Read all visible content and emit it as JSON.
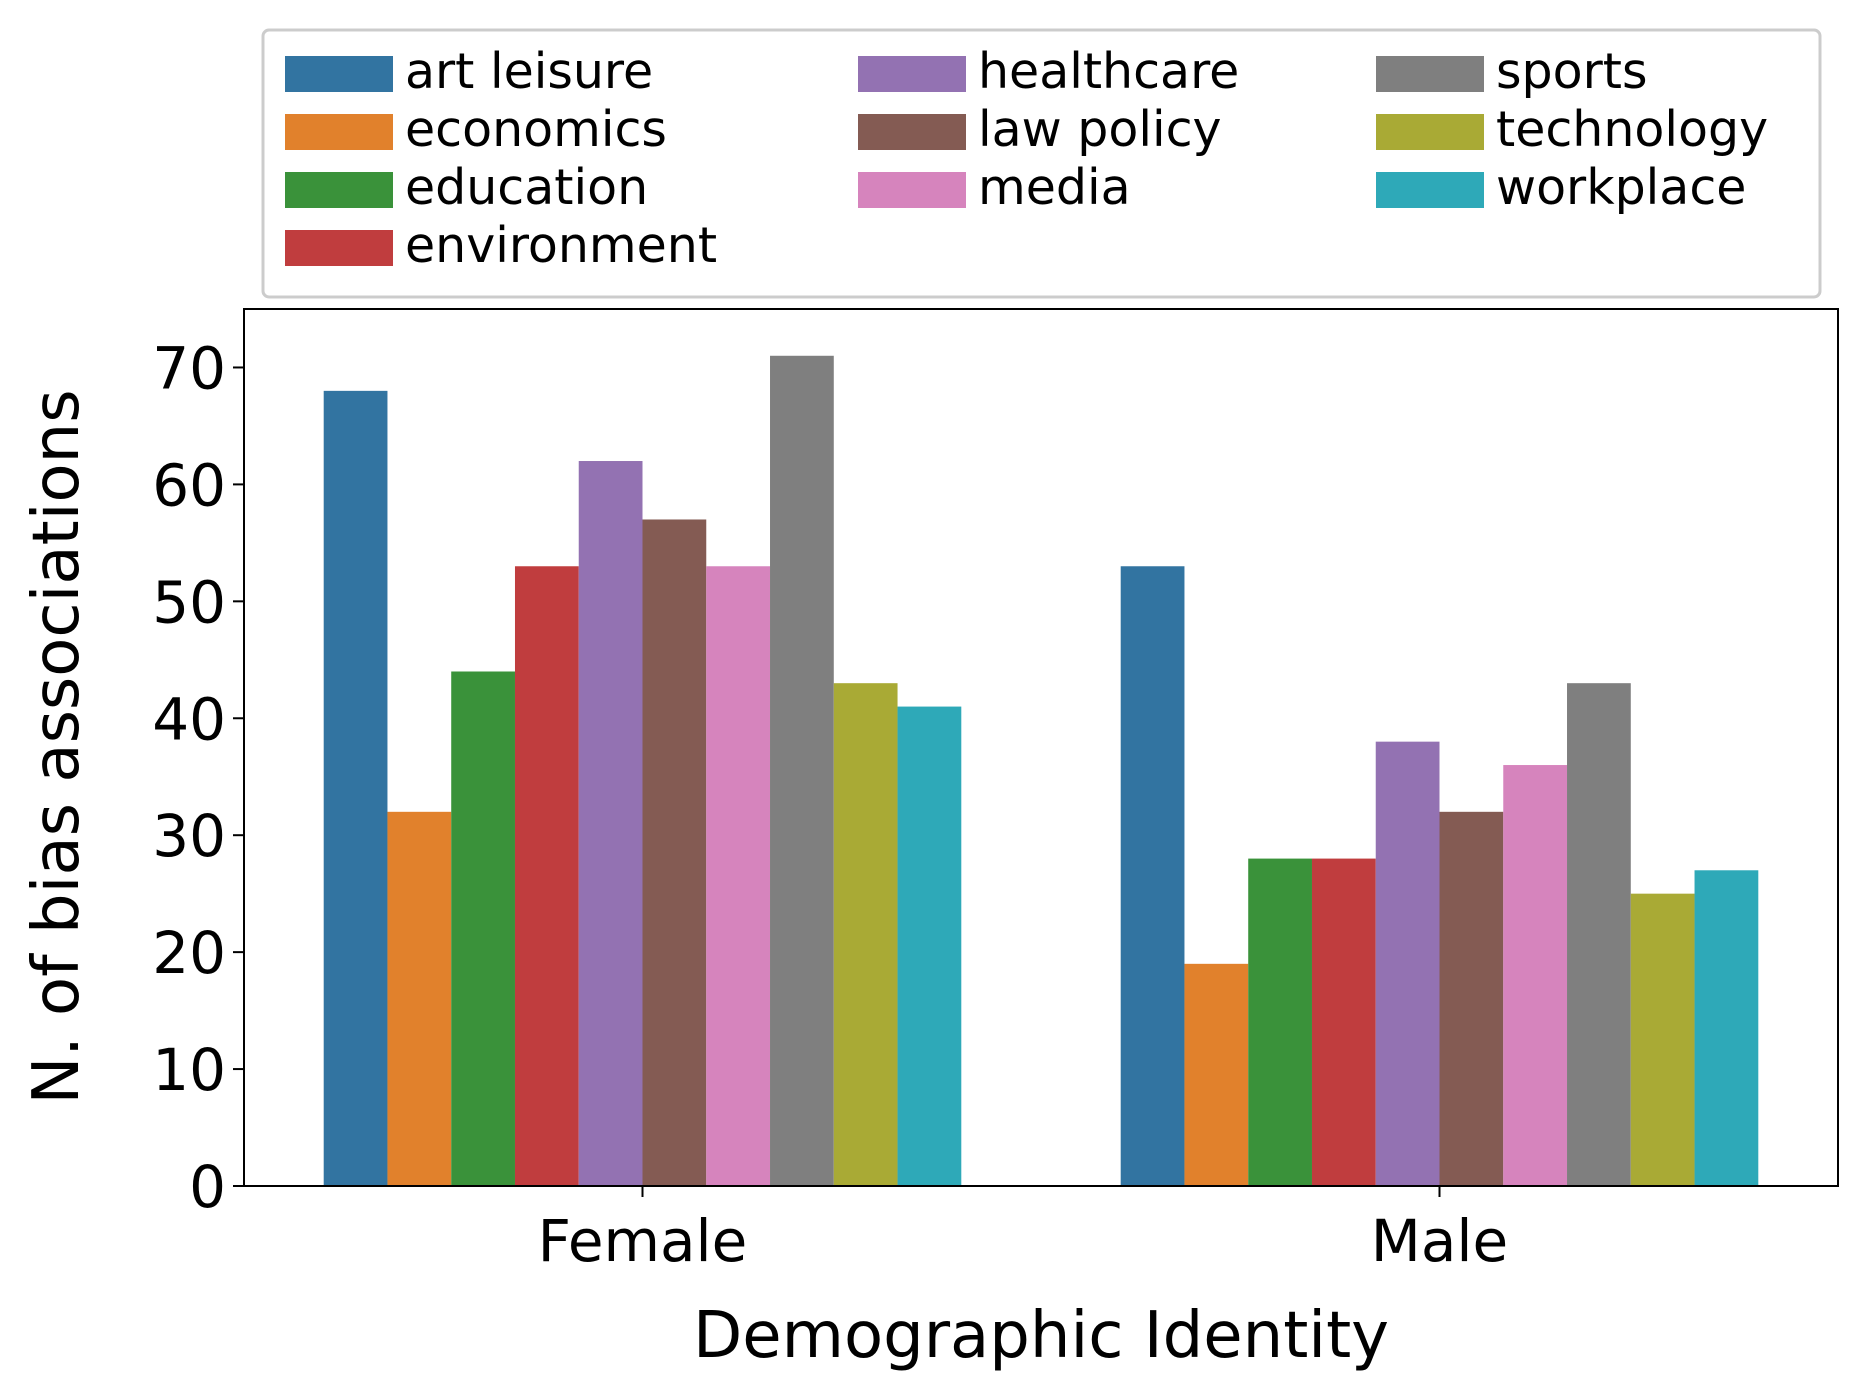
{
  "chart_data": {
    "type": "bar",
    "xlabel": "Demographic Identity",
    "ylabel": "N. of bias associations",
    "ylim": [
      0,
      75
    ],
    "yticks": [
      0,
      10,
      20,
      30,
      40,
      50,
      60,
      70
    ],
    "categories": [
      "Female",
      "Male"
    ],
    "legend_position": "top",
    "series": [
      {
        "name": "art leisure",
        "color": "#3274a1",
        "values": [
          68,
          53
        ]
      },
      {
        "name": "economics",
        "color": "#e1812c",
        "values": [
          32,
          19
        ]
      },
      {
        "name": "education",
        "color": "#3a923a",
        "values": [
          44,
          28
        ]
      },
      {
        "name": "environment",
        "color": "#c03d3e",
        "values": [
          53,
          28
        ]
      },
      {
        "name": "healthcare",
        "color": "#9372b2",
        "values": [
          62,
          38
        ]
      },
      {
        "name": "law policy",
        "color": "#845b53",
        "values": [
          57,
          32
        ]
      },
      {
        "name": "media",
        "color": "#d684bd",
        "values": [
          53,
          36
        ]
      },
      {
        "name": "sports",
        "color": "#7f7f7f",
        "values": [
          71,
          43
        ]
      },
      {
        "name": "technology",
        "color": "#a9aa35",
        "values": [
          43,
          25
        ]
      },
      {
        "name": "workplace",
        "color": "#2ea9b8",
        "values": [
          41,
          27
        ]
      }
    ]
  }
}
